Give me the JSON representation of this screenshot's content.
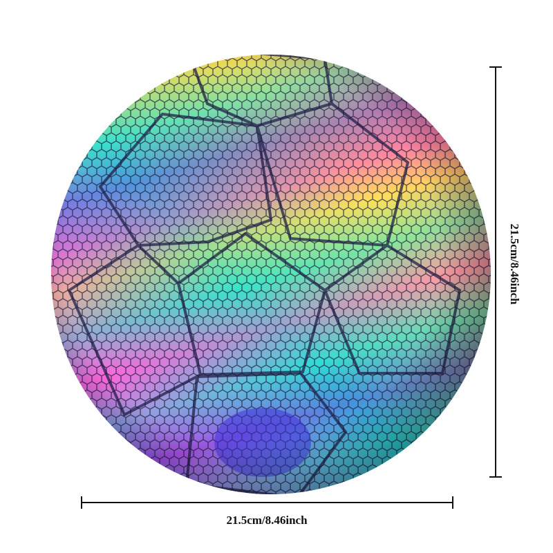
{
  "dimensions": {
    "width_label": "21.5cm/8.46inch",
    "height_label": "21.5cm/8.46inch"
  }
}
